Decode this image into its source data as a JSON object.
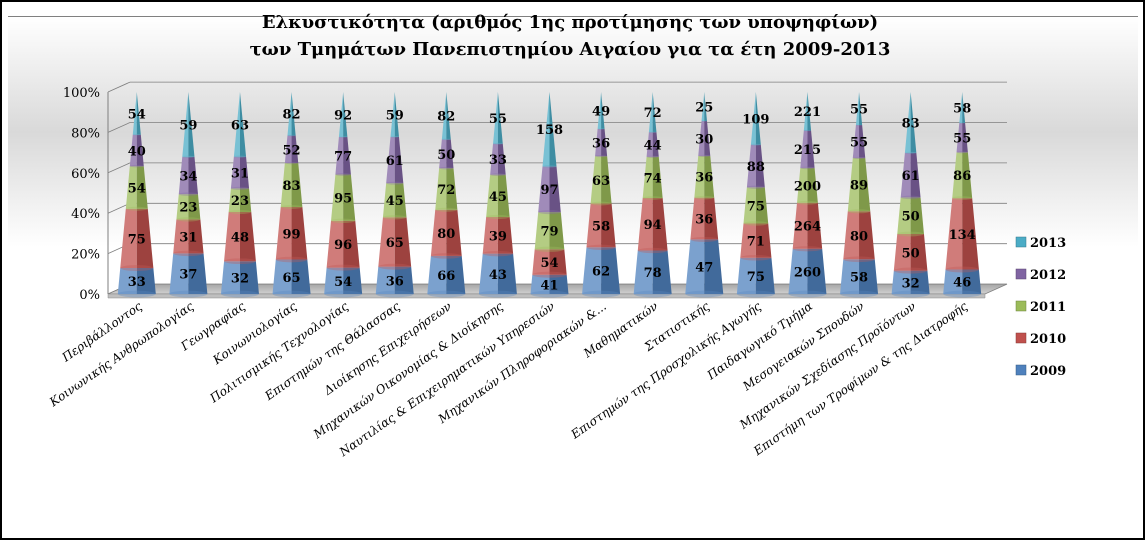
{
  "chart_data": {
    "type": "bar",
    "stacked": "percent",
    "title": "Ελκυστικότητα (αριθμός 1ης προτίμησης των υποψηφίων)",
    "subtitle": "των Τμημάτων Πανεπιστημίου Αιγαίου για τα έτη 2009-2013",
    "xlabel": "",
    "ylabel": "",
    "ylim": [
      0,
      100
    ],
    "yticks": [
      "0%",
      "20%",
      "40%",
      "60%",
      "80%",
      "100%"
    ],
    "grid": true,
    "legend_position": "right",
    "categories": [
      "Περιβάλλοντος",
      "Κοινωνικής Ανθρωπολογίας",
      "Γεωγραφίας",
      "Κοινωνιολογίας",
      "Πολιτισμικής Τεχνολογίας",
      "Επιστημών της Θάλασσας",
      "Διοίκησης Επιχειρήσεων",
      "Μηχανικών Οικονομίας & Διοίκησης",
      "Ναυτιλίας & Επιχειρηματικών Υπηρεσιών",
      "Μηχανικών Πληροφοριακών &...",
      "Μαθηματικών",
      "Στατιστικής",
      "Επιστημών της Προσχολικής Αγωγής",
      "Παιδαγωγικό Τμήμα",
      "Μεσογειακών Σπουδών",
      "Μηχανικών Σχεδίασης Προϊόντων",
      "Επιστήμη των Τροφίμων & της Διατροφής"
    ],
    "series": [
      {
        "name": "2009",
        "color": "#4F81BD",
        "values": [
          33,
          37,
          32,
          65,
          54,
          36,
          66,
          43,
          41,
          62,
          78,
          47,
          75,
          260,
          58,
          32,
          46
        ]
      },
      {
        "name": "2010",
        "color": "#C0504D",
        "values": [
          75,
          31,
          48,
          99,
          96,
          65,
          80,
          39,
          54,
          58,
          94,
          36,
          71,
          264,
          80,
          50,
          134
        ]
      },
      {
        "name": "2011",
        "color": "#9BBB59",
        "values": [
          54,
          23,
          23,
          83,
          95,
          45,
          72,
          45,
          79,
          63,
          74,
          36,
          75,
          200,
          89,
          50,
          86
        ]
      },
      {
        "name": "2012",
        "color": "#8064A2",
        "values": [
          40,
          34,
          31,
          52,
          77,
          61,
          50,
          33,
          97,
          36,
          44,
          30,
          88,
          215,
          55,
          61,
          55
        ]
      },
      {
        "name": "2013",
        "color": "#4BACC6",
        "values": [
          54,
          59,
          63,
          82,
          92,
          59,
          82,
          55,
          158,
          49,
          72,
          25,
          109,
          221,
          55,
          83,
          58
        ]
      }
    ]
  }
}
